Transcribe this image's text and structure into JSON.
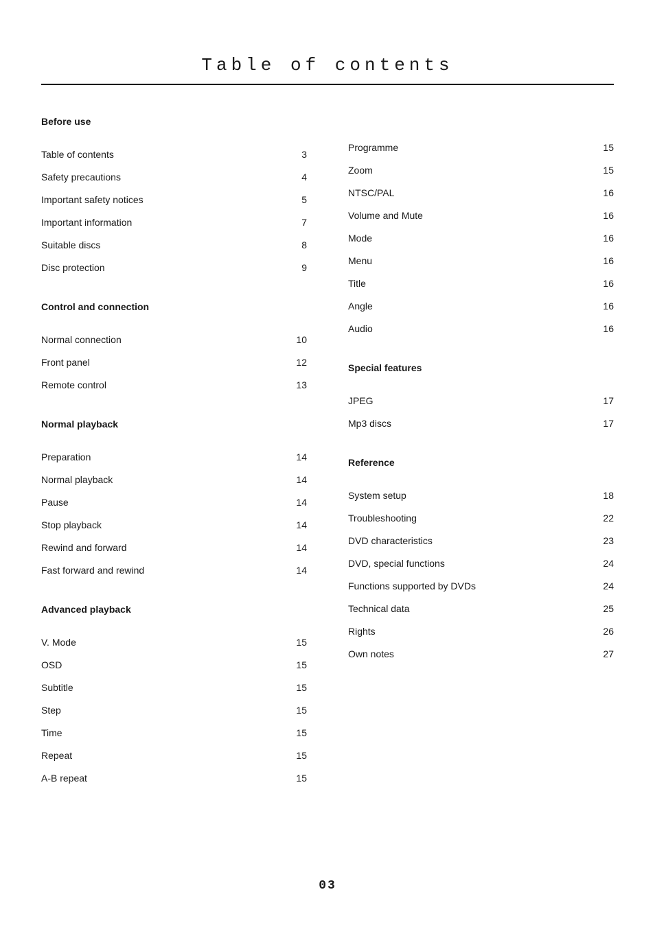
{
  "title": "Table of contents",
  "page_number": "03",
  "colors": {
    "background": "#ffffff",
    "text": "#1a1a1a",
    "border": "#000000"
  },
  "typography": {
    "title_fontsize": 26,
    "title_letterspacing": 6,
    "body_fontsize": 14,
    "title_font": "Courier New, monospace",
    "body_font": "Arial, Helvetica, sans-serif"
  },
  "left_column": {
    "sections": [
      {
        "header": "Before use",
        "items": [
          {
            "label": "Table of contents",
            "page": "3"
          },
          {
            "label": "Safety precautions",
            "page": "4"
          },
          {
            "label": "Important safety notices",
            "page": "5"
          },
          {
            "label": "Important information",
            "page": "7"
          },
          {
            "label": "Suitable discs",
            "page": "8"
          },
          {
            "label": "Disc protection",
            "page": "9"
          }
        ]
      },
      {
        "header": "Control and connection",
        "items": [
          {
            "label": "Normal connection",
            "page": "10"
          },
          {
            "label": "Front panel",
            "page": "12"
          },
          {
            "label": "Remote control",
            "page": "13"
          }
        ]
      },
      {
        "header": "Normal playback",
        "items": [
          {
            "label": "Preparation",
            "page": "14"
          },
          {
            "label": "Normal playback",
            "page": "14"
          },
          {
            "label": "Pause",
            "page": "14"
          },
          {
            "label": "Stop playback",
            "page": "14"
          },
          {
            "label": "Rewind and forward",
            "page": "14"
          },
          {
            "label": "Fast forward and rewind",
            "page": "14"
          }
        ]
      },
      {
        "header": "Advanced playback",
        "items": [
          {
            "label": "V. Mode",
            "page": "15"
          },
          {
            "label": "OSD",
            "page": "15"
          },
          {
            "label": "Subtitle",
            "page": "15"
          },
          {
            "label": "Step",
            "page": "15"
          },
          {
            "label": "Time",
            "page": "15"
          },
          {
            "label": "Repeat",
            "page": "15"
          },
          {
            "label": "A-B repeat",
            "page": "15"
          }
        ]
      }
    ]
  },
  "right_column": {
    "sections": [
      {
        "header": null,
        "items": [
          {
            "label": "Programme",
            "page": "15"
          },
          {
            "label": "Zoom",
            "page": "15"
          },
          {
            "label": "NTSC/PAL",
            "page": "16"
          },
          {
            "label": "Volume and Mute",
            "page": "16"
          },
          {
            "label": "Mode",
            "page": "16"
          },
          {
            "label": "Menu",
            "page": "16"
          },
          {
            "label": "Title",
            "page": "16"
          },
          {
            "label": "Angle",
            "page": "16"
          },
          {
            "label": "Audio",
            "page": "16"
          }
        ]
      },
      {
        "header": "Special features",
        "items": [
          {
            "label": "JPEG",
            "page": "17"
          },
          {
            "label": "Mp3 discs",
            "page": "17"
          }
        ]
      },
      {
        "header": "Reference",
        "items": [
          {
            "label": "System setup",
            "page": "18"
          },
          {
            "label": "Troubleshooting",
            "page": "22"
          },
          {
            "label": "DVD characteristics",
            "page": "23"
          },
          {
            "label": "DVD, special functions",
            "page": "24"
          },
          {
            "label": "Functions supported by DVDs",
            "page": "24"
          },
          {
            "label": "Technical data",
            "page": "25"
          },
          {
            "label": "Rights",
            "page": "26"
          },
          {
            "label": "Own notes",
            "page": "27"
          }
        ]
      }
    ]
  }
}
